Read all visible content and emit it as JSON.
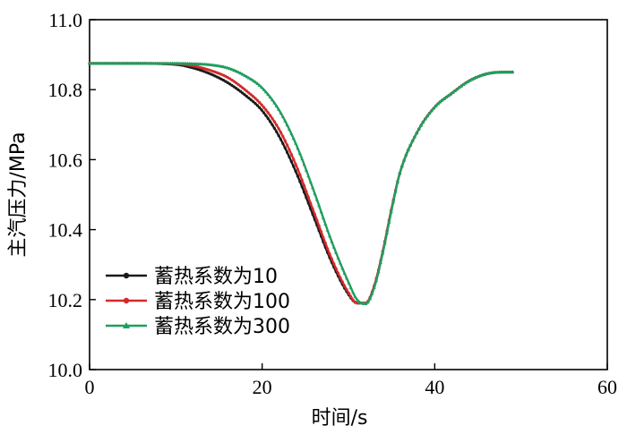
{
  "chart_data": {
    "type": "line",
    "xlabel": "时间/s",
    "ylabel": "主汽压力/MPa",
    "xlim": [
      0,
      60
    ],
    "ylim": [
      10.0,
      11.0
    ],
    "x_ticks": [
      "0",
      "20",
      "40",
      "60"
    ],
    "y_ticks": [
      "10.0",
      "10.2",
      "10.4",
      "10.6",
      "10.8",
      "11.0"
    ],
    "grid": false,
    "legend_position": "bottom-left",
    "series": [
      {
        "name": "蓄热系数为10",
        "color": "#1a1a1a",
        "marker": "circle",
        "points": [
          [
            0,
            10.875
          ],
          [
            5,
            10.875
          ],
          [
            10,
            10.872
          ],
          [
            12,
            10.862
          ],
          [
            14,
            10.845
          ],
          [
            16,
            10.82
          ],
          [
            18,
            10.785
          ],
          [
            20,
            10.74
          ],
          [
            22,
            10.665
          ],
          [
            24,
            10.56
          ],
          [
            26,
            10.435
          ],
          [
            28,
            10.31
          ],
          [
            30,
            10.215
          ],
          [
            31,
            10.19
          ],
          [
            32,
            10.19
          ],
          [
            33,
            10.24
          ],
          [
            34,
            10.34
          ],
          [
            35,
            10.46
          ],
          [
            36,
            10.565
          ],
          [
            38,
            10.68
          ],
          [
            40,
            10.75
          ],
          [
            42,
            10.79
          ],
          [
            44,
            10.825
          ],
          [
            46,
            10.845
          ],
          [
            48,
            10.85
          ],
          [
            49,
            10.85
          ]
        ]
      },
      {
        "name": "蓄热系数为100",
        "color": "#d42a2a",
        "marker": "circle",
        "points": [
          [
            0,
            10.875
          ],
          [
            5,
            10.875
          ],
          [
            10,
            10.874
          ],
          [
            12,
            10.868
          ],
          [
            14,
            10.855
          ],
          [
            16,
            10.835
          ],
          [
            18,
            10.8
          ],
          [
            20,
            10.755
          ],
          [
            22,
            10.685
          ],
          [
            24,
            10.58
          ],
          [
            26,
            10.45
          ],
          [
            28,
            10.32
          ],
          [
            30,
            10.22
          ],
          [
            31,
            10.19
          ],
          [
            32,
            10.19
          ],
          [
            33,
            10.24
          ],
          [
            34,
            10.34
          ],
          [
            35,
            10.46
          ],
          [
            36,
            10.565
          ],
          [
            38,
            10.68
          ],
          [
            40,
            10.75
          ],
          [
            42,
            10.79
          ],
          [
            44,
            10.825
          ],
          [
            46,
            10.845
          ],
          [
            48,
            10.85
          ],
          [
            49,
            10.85
          ]
        ]
      },
      {
        "name": "蓄热系数为300",
        "color": "#1f9e5f",
        "marker": "triangle",
        "points": [
          [
            0,
            10.875
          ],
          [
            5,
            10.875
          ],
          [
            10,
            10.875
          ],
          [
            12,
            10.874
          ],
          [
            14,
            10.871
          ],
          [
            16,
            10.862
          ],
          [
            18,
            10.84
          ],
          [
            20,
            10.805
          ],
          [
            22,
            10.74
          ],
          [
            24,
            10.64
          ],
          [
            26,
            10.51
          ],
          [
            28,
            10.37
          ],
          [
            30,
            10.25
          ],
          [
            31,
            10.2
          ],
          [
            32,
            10.188
          ],
          [
            33,
            10.235
          ],
          [
            34,
            10.335
          ],
          [
            35,
            10.455
          ],
          [
            36,
            10.565
          ],
          [
            38,
            10.68
          ],
          [
            40,
            10.75
          ],
          [
            42,
            10.79
          ],
          [
            44,
            10.825
          ],
          [
            46,
            10.845
          ],
          [
            48,
            10.85
          ],
          [
            49,
            10.85
          ]
        ]
      }
    ]
  }
}
